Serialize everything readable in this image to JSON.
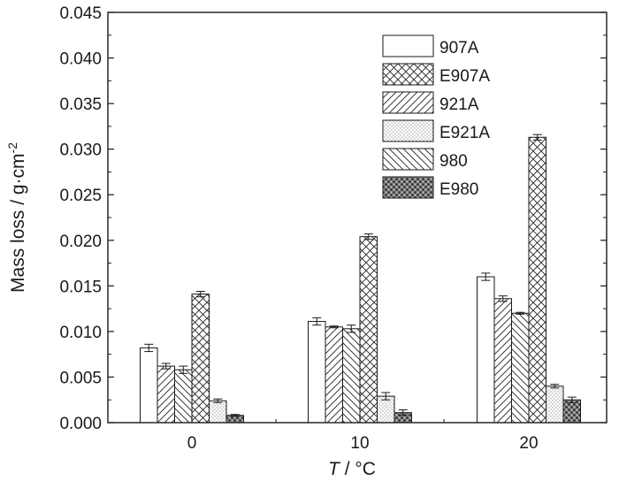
{
  "chart_data": {
    "type": "bar",
    "xlabel_italic": "T",
    "xlabel_rest": " / °C",
    "ylabel": "Mass loss / g·cm",
    "ylabel_sup": "-2",
    "categories": [
      "0",
      "10",
      "20"
    ],
    "ylim": [
      0,
      0.045
    ],
    "yticks": [
      "0.000",
      "0.005",
      "0.010",
      "0.015",
      "0.020",
      "0.025",
      "0.030",
      "0.035",
      "0.040",
      "0.045"
    ],
    "legend_position": "top-right",
    "series": [
      {
        "name": "907A",
        "pattern": "empty",
        "values": [
          0.0082,
          0.0111,
          0.016
        ],
        "errors": [
          0.0004,
          0.0004,
          0.0004
        ]
      },
      {
        "name": "E907A",
        "pattern": "crosshatch",
        "values": [
          0.0141,
          0.0204,
          0.0313
        ],
        "errors": [
          0.0003,
          0.0003,
          0.0003
        ]
      },
      {
        "name": "921A",
        "pattern": "diag-up",
        "values": [
          0.0062,
          0.0105,
          0.0136
        ],
        "errors": [
          0.0003,
          0.0001,
          0.0003
        ]
      },
      {
        "name": "E921A",
        "pattern": "dots",
        "values": [
          0.0024,
          0.0029,
          0.004
        ],
        "errors": [
          0.0002,
          0.0004,
          0.0002
        ]
      },
      {
        "name": "980",
        "pattern": "diag-down",
        "values": [
          0.0058,
          0.0103,
          0.012
        ],
        "errors": [
          0.0004,
          0.0004,
          0.0001
        ]
      },
      {
        "name": "E980",
        "pattern": "dense-dots",
        "values": [
          0.0008,
          0.0011,
          0.0025
        ],
        "errors": [
          0.0001,
          0.0003,
          0.0003
        ]
      }
    ],
    "bar_order": [
      "907A",
      "921A",
      "980",
      "E907A",
      "E921A",
      "E980"
    ]
  }
}
